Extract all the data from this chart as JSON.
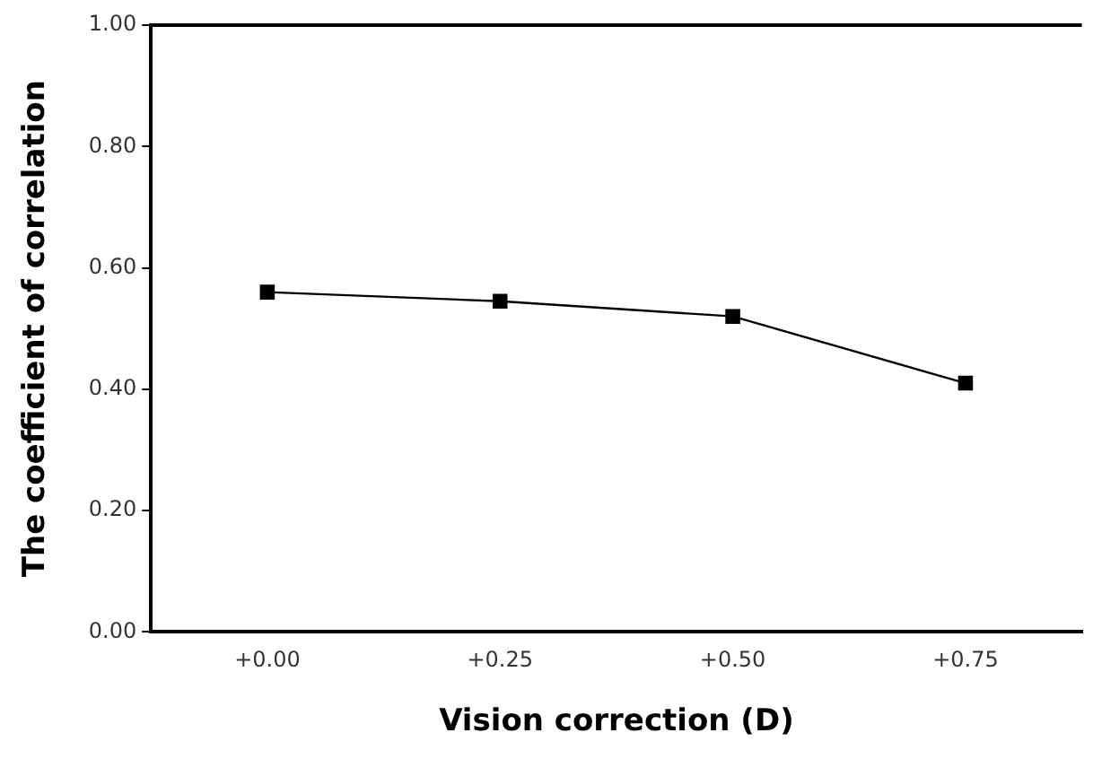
{
  "chart_data": {
    "type": "line",
    "xlabel": "Vision correction (D)",
    "ylabel": "The coefficient of correlation",
    "categories": [
      "+0.00",
      "+0.25",
      "+0.50",
      "+0.75"
    ],
    "series": [
      {
        "color": "#000000",
        "values": [
          0.56,
          0.545,
          0.52,
          0.41
        ]
      }
    ],
    "ylim": [
      0,
      1
    ],
    "yticks": [
      {
        "value": 0,
        "label": "0.00"
      },
      {
        "value": 0.2,
        "label": "0.20"
      },
      {
        "value": 0.4,
        "label": "0.40"
      },
      {
        "value": 0.6,
        "label": "0.60"
      },
      {
        "value": 0.8,
        "label": "0.80"
      },
      {
        "value": 1,
        "label": "1.00"
      }
    ],
    "grid": false,
    "legend": false,
    "marker": "square",
    "line_style": "solid"
  }
}
